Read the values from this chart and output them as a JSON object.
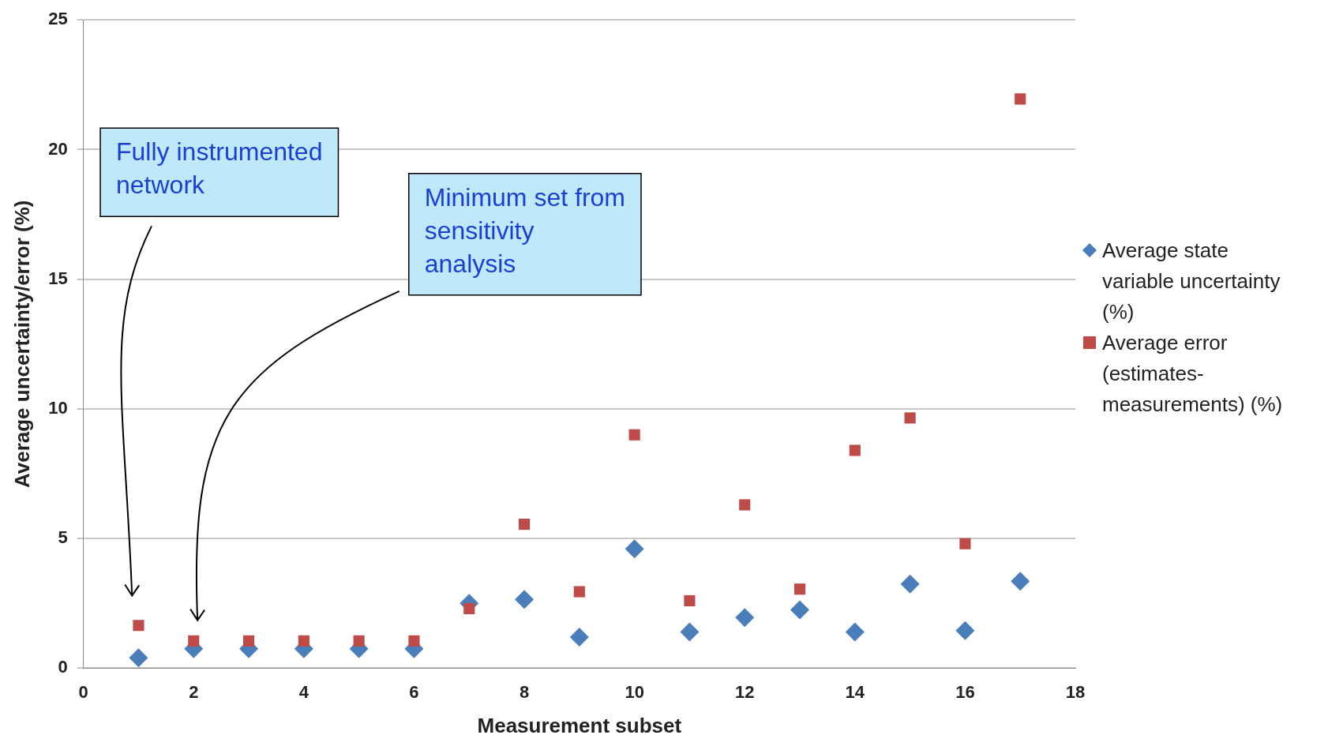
{
  "chart_data": {
    "type": "scatter",
    "xlabel": "Measurement subset",
    "ylabel": "Average uncertainty/error (%)",
    "xlim": [
      0,
      18
    ],
    "xticks": [
      0,
      2,
      4,
      6,
      8,
      10,
      12,
      14,
      16,
      18
    ],
    "ylim": [
      0,
      25
    ],
    "yticks": [
      0,
      5,
      10,
      15,
      20,
      25
    ],
    "grid": "y",
    "legend": "right",
    "x": [
      1,
      2,
      3,
      4,
      5,
      6,
      7,
      8,
      9,
      10,
      11,
      12,
      13,
      14,
      15,
      16,
      17
    ],
    "series": [
      {
        "name": "Average state variable uncertainty (%)",
        "color": "#4a7ebb",
        "marker": "diamond",
        "values": [
          0.4,
          0.75,
          0.75,
          0.75,
          0.75,
          0.75,
          2.5,
          2.65,
          1.2,
          4.6,
          1.4,
          1.95,
          2.25,
          1.4,
          3.25,
          1.45,
          3.35
        ]
      },
      {
        "name": "Average error (estimates-measurements) (%)",
        "color": "#be4b48",
        "marker": "square",
        "values": [
          1.65,
          1.05,
          1.05,
          1.05,
          1.05,
          1.05,
          2.3,
          5.55,
          2.95,
          9.0,
          2.6,
          6.3,
          3.05,
          8.4,
          9.65,
          4.8,
          21.95
        ]
      }
    ],
    "annotations": [
      "Fully instrumented network",
      "Minimum set from sensitivity analysis"
    ]
  }
}
